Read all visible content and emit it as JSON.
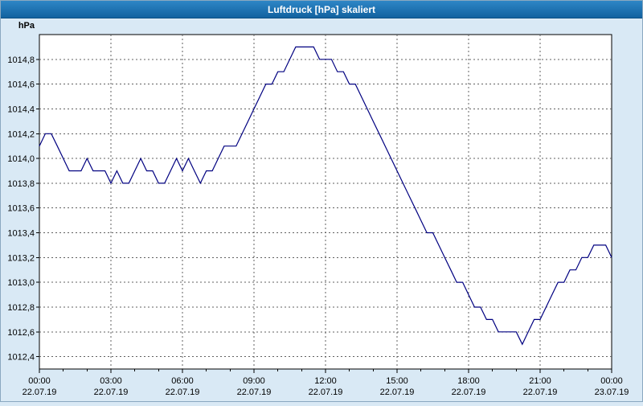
{
  "window": {
    "title": "Luftdruck [hPa] skaliert"
  },
  "colors": {
    "title_bar_top": "#2e86c6",
    "title_bar_bottom": "#1262a0",
    "background": "#d9e9f5",
    "plot_background": "#ffffff",
    "plot_border": "#000000",
    "grid": "#606060",
    "line": "#000080",
    "text": "#000000"
  },
  "chart_data": {
    "type": "line",
    "title": "Luftdruck [hPa] skaliert",
    "ylabel": "hPa",
    "xlabel": "",
    "grid": "dashed",
    "legend": "none",
    "xlim": [
      0,
      24
    ],
    "ylim": [
      1012.3,
      1015.0
    ],
    "y_ticks": [
      1014.8,
      1014.6,
      1014.4,
      1014.2,
      1014.0,
      1013.8,
      1013.6,
      1013.4,
      1013.2,
      1013.0,
      1012.8,
      1012.6,
      1012.4
    ],
    "y_tick_labels": [
      "1014,8",
      "1014,6",
      "1014,4",
      "1014,2",
      "1014,0",
      "1013,8",
      "1013,6",
      "1013,4",
      "1013,2",
      "1013,0",
      "1012,8",
      "1012,6",
      "1012,4"
    ],
    "x_tick_hours": [
      0,
      3,
      6,
      9,
      12,
      15,
      18,
      21,
      24
    ],
    "x_tick_times": [
      "00:00",
      "03:00",
      "06:00",
      "09:00",
      "12:00",
      "15:00",
      "18:00",
      "21:00",
      "00:00"
    ],
    "x_tick_dates": [
      "22.07.19",
      "22.07.19",
      "22.07.19",
      "22.07.19",
      "22.07.19",
      "22.07.19",
      "22.07.19",
      "22.07.19",
      "23.07.19"
    ],
    "x": [
      0,
      0.25,
      0.5,
      0.75,
      1,
      1.25,
      1.75,
      2,
      2.25,
      2.75,
      3,
      3.25,
      3.5,
      3.75,
      4,
      4.25,
      4.5,
      4.75,
      5,
      5.25,
      5.5,
      5.75,
      6,
      6.25,
      6.5,
      6.75,
      7,
      7.25,
      7.5,
      7.75,
      8,
      8.25,
      8.5,
      8.75,
      9,
      9.25,
      9.5,
      9.75,
      10,
      10.25,
      10.5,
      10.75,
      11,
      11.5,
      11.75,
      12.25,
      12.5,
      12.75,
      13,
      13.25,
      13.5,
      13.75,
      14,
      14.25,
      14.5,
      14.75,
      15,
      15.25,
      15.5,
      15.75,
      16,
      16.25,
      16.5,
      16.75,
      17,
      17.25,
      17.5,
      17.75,
      18,
      18.25,
      18.5,
      18.75,
      19,
      19.25,
      19.75,
      20,
      20.25,
      20.5,
      20.75,
      21,
      21.25,
      21.5,
      21.75,
      22,
      22.25,
      22.5,
      22.75,
      23,
      23.25,
      23.5,
      23.75,
      24
    ],
    "values": [
      1014.1,
      1014.2,
      1014.2,
      1014.1,
      1014.0,
      1013.9,
      1013.9,
      1014.0,
      1013.9,
      1013.9,
      1013.8,
      1013.9,
      1013.8,
      1013.8,
      1013.9,
      1014.0,
      1013.9,
      1013.9,
      1013.8,
      1013.8,
      1013.9,
      1014.0,
      1013.9,
      1014.0,
      1013.9,
      1013.8,
      1013.9,
      1013.9,
      1014.0,
      1014.1,
      1014.1,
      1014.1,
      1014.2,
      1014.3,
      1014.4,
      1014.5,
      1014.6,
      1014.6,
      1014.7,
      1014.7,
      1014.8,
      1014.9,
      1014.9,
      1014.9,
      1014.8,
      1014.8,
      1014.7,
      1014.7,
      1014.6,
      1014.6,
      1014.5,
      1014.4,
      1014.3,
      1014.2,
      1014.1,
      1014.0,
      1013.9,
      1013.8,
      1013.7,
      1013.6,
      1013.5,
      1013.4,
      1013.4,
      1013.3,
      1013.2,
      1013.1,
      1013.0,
      1013.0,
      1012.9,
      1012.8,
      1012.8,
      1012.7,
      1012.7,
      1012.6,
      1012.6,
      1012.6,
      1012.5,
      1012.6,
      1012.7,
      1012.7,
      1012.8,
      1012.9,
      1013.0,
      1013.0,
      1013.1,
      1013.1,
      1013.2,
      1013.2,
      1013.3,
      1013.3,
      1013.3,
      1013.2
    ]
  }
}
